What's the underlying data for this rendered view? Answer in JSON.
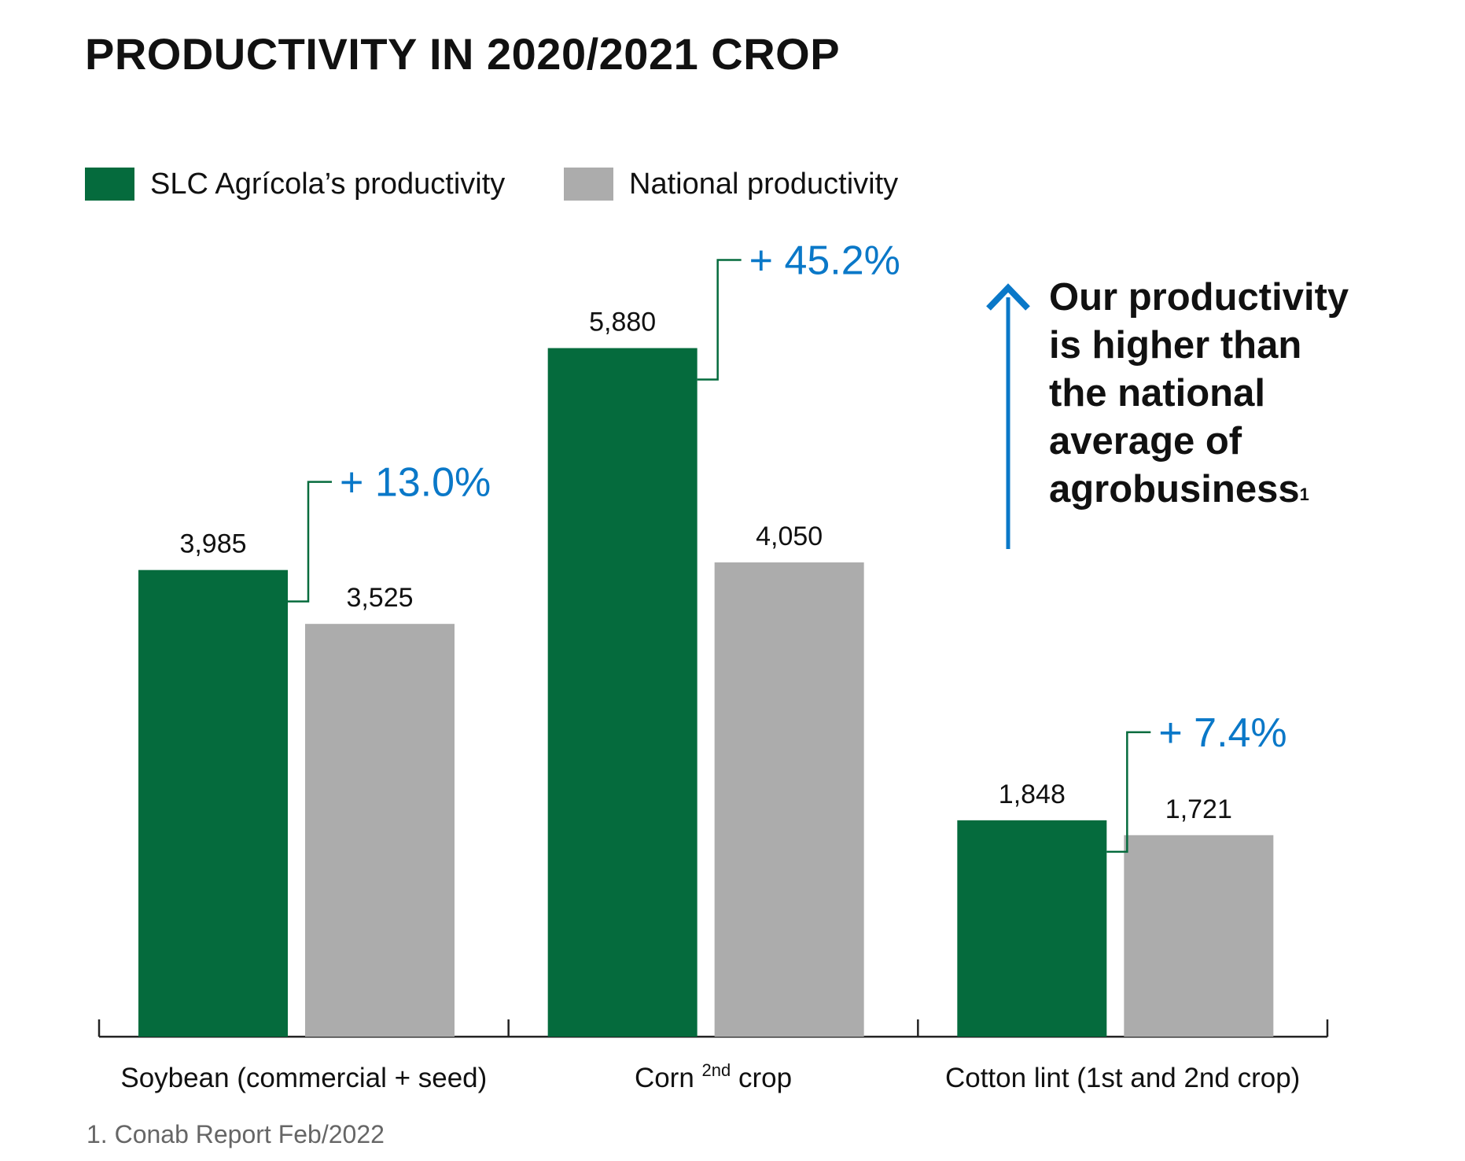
{
  "title": "PRODUCTIVITY IN 2020/2021 CROP",
  "legend": [
    {
      "label": "SLC Agrícola’s productivity",
      "color": "#056b3d"
    },
    {
      "label": "National productivity",
      "color": "#acacac"
    }
  ],
  "annotation": {
    "lines": [
      "Our productivity",
      "is higher than",
      "the national",
      "average of",
      "agrobusiness"
    ],
    "superscript": "1",
    "arrow_color": "#0a78c8"
  },
  "footnote": "1. Conab Report Feb/2022",
  "colors": {
    "slc": "#056b3d",
    "national": "#acacac",
    "accent": "#0a78c8",
    "connector": "#056b3d",
    "axis": "#222222"
  },
  "chart_data": {
    "type": "bar",
    "categories": [
      "Soybean (commercial + seed)",
      "Corn 2nd crop",
      "Cotton lint (1st and 2nd crop)"
    ],
    "category_labels": [
      {
        "text": "Soybean (commercial + seed)",
        "sup": ""
      },
      {
        "pre": "Corn ",
        "sup": "2nd",
        "post": " crop"
      },
      {
        "text": "Cotton lint (1st and 2nd crop)",
        "sup": ""
      }
    ],
    "series": [
      {
        "name": "SLC Agrícola’s productivity",
        "values": [
          3985,
          5880,
          1848
        ],
        "labels": [
          "3,985",
          "5,880",
          "1,848"
        ]
      },
      {
        "name": "National productivity",
        "values": [
          3525,
          4050,
          1721
        ],
        "labels": [
          "3,525",
          "4,050",
          "1,721"
        ]
      }
    ],
    "differences": [
      "+ 13.0%",
      "+ 45.2%",
      "+ 7.4%"
    ],
    "ylim": [
      0,
      6300
    ],
    "grid": false,
    "legend_position": "top-left"
  }
}
